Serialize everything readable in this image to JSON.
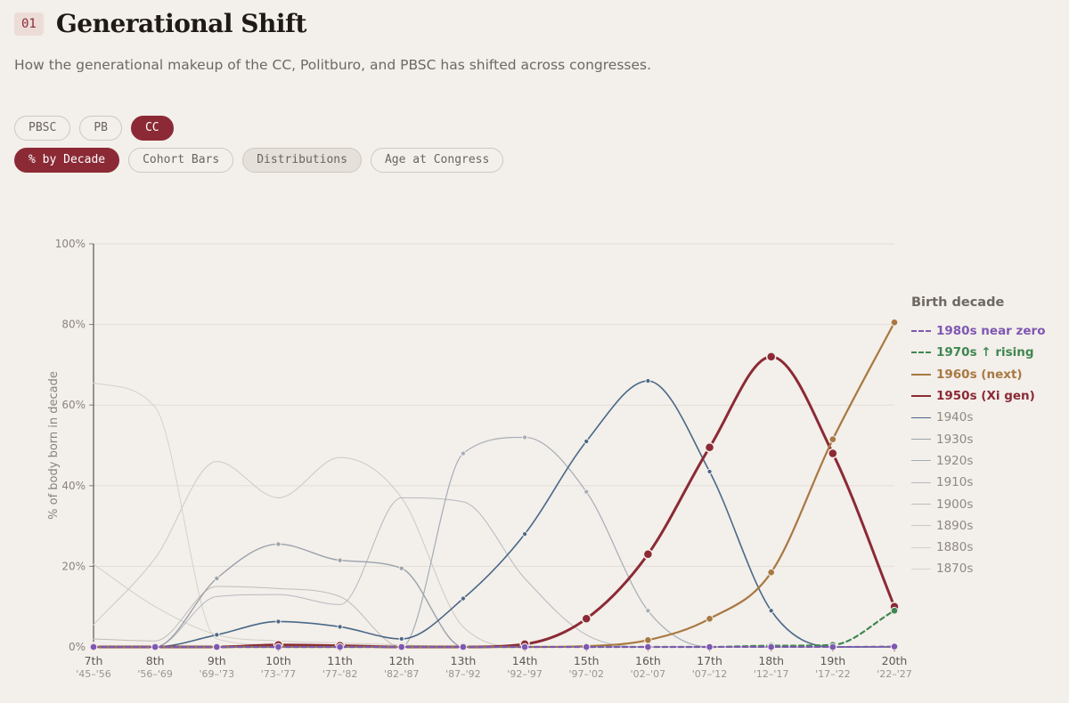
{
  "header": {
    "number": "01",
    "title": "Generational Shift",
    "subtitle": "How the generational makeup of the CC, Politburo, and PBSC has shifted across congresses."
  },
  "body_filters": [
    {
      "label": "PBSC",
      "active": false
    },
    {
      "label": "PB",
      "active": false
    },
    {
      "label": "CC",
      "active": true
    }
  ],
  "view_tabs": [
    {
      "label": "% by Decade",
      "active": true,
      "soft": false
    },
    {
      "label": "Cohort Bars",
      "active": false,
      "soft": false
    },
    {
      "label": "Distributions",
      "active": false,
      "soft": true
    },
    {
      "label": "Age at Congress",
      "active": false,
      "soft": false
    }
  ],
  "chart_data": {
    "type": "line",
    "ylabel": "% of body born in decade",
    "ylim": [
      0,
      100
    ],
    "yticks": [
      0,
      20,
      40,
      60,
      80,
      100
    ],
    "ytick_labels": [
      "0%",
      "20%",
      "40%",
      "60%",
      "80%",
      "100%"
    ],
    "categories": [
      "7th",
      "8th",
      "9th",
      "10th",
      "11th",
      "12th",
      "13th",
      "14th",
      "15th",
      "16th",
      "17th",
      "18th",
      "19th",
      "20th"
    ],
    "category_years": [
      "'45–'56",
      "'56–'69",
      "'69–'73",
      "'73–'77",
      "'77–'82",
      "'82–'87",
      "'87–'92",
      "'92–'97",
      "'97–'02",
      "'02–'07",
      "'07–'12",
      "'12–'17",
      "'17–'22",
      "'22–'27"
    ],
    "legend_title": "Birth decade",
    "series": [
      {
        "name": "1870s",
        "label": "1870s",
        "color": "#d6d1cb",
        "width": 1,
        "highlight": false,
        "markers": false,
        "values": [
          65.5,
          59.5,
          2,
          0.5,
          0,
          0,
          0,
          0,
          0,
          0,
          0,
          0,
          0,
          0
        ]
      },
      {
        "name": "1880s",
        "label": "1880s",
        "color": "#d3cec8",
        "width": 1,
        "highlight": false,
        "markers": false,
        "values": [
          20.5,
          10,
          3,
          1.5,
          1,
          0.5,
          0,
          0,
          0,
          0,
          0,
          0,
          0,
          0
        ]
      },
      {
        "name": "1890s",
        "label": "1890s",
        "color": "#cec8c2",
        "width": 1,
        "highlight": false,
        "markers": false,
        "values": [
          5.5,
          22,
          46,
          37,
          47,
          37,
          5,
          0,
          0,
          0,
          0,
          0,
          0,
          0
        ]
      },
      {
        "name": "1900s",
        "label": "1900s",
        "color": "#c2bcb6",
        "width": 1,
        "highlight": false,
        "markers": false,
        "values": [
          2,
          1.5,
          15,
          14.5,
          12.5,
          0,
          0,
          0,
          0,
          0,
          0,
          0,
          0,
          0
        ]
      },
      {
        "name": "1910s",
        "label": "1910s",
        "color": "#b5b9c0",
        "width": 1,
        "highlight": false,
        "markers": false,
        "values": [
          0,
          0,
          12.5,
          13,
          10.5,
          37,
          36,
          17,
          3,
          0,
          0,
          0,
          0,
          0
        ]
      },
      {
        "name": "1920s",
        "label": "1920s",
        "color": "#a5adb7",
        "width": 1.2,
        "highlight": false,
        "markers": true,
        "values": [
          0,
          0,
          0,
          0,
          0,
          0,
          48,
          52,
          38.5,
          9,
          0,
          0,
          0,
          0
        ]
      },
      {
        "name": "1930s",
        "label": "1930s",
        "color": "#9ba2ab",
        "width": 1.4,
        "highlight": false,
        "markers": true,
        "values": [
          0,
          0,
          17,
          25.5,
          21.5,
          19.5,
          0,
          0,
          0,
          0,
          0,
          0,
          0,
          0
        ]
      },
      {
        "name": "1940s",
        "label": "1940s",
        "color": "#4a6888",
        "width": 1.6,
        "highlight": false,
        "markers": true,
        "values": [
          0,
          0,
          3,
          6.3,
          5,
          2,
          12,
          28,
          51,
          66,
          43.5,
          9,
          0,
          0
        ]
      },
      {
        "name": "1950s",
        "label": "1950s (Xi gen)",
        "color": "#8b2a35",
        "width": 3,
        "highlight": true,
        "markers": true,
        "values": [
          0,
          0,
          0,
          0.5,
          0.3,
          0,
          0,
          0.7,
          7,
          23,
          49.5,
          72,
          48,
          10
        ]
      },
      {
        "name": "1960s",
        "label": "1960s (next)",
        "color": "#a87842",
        "width": 2.2,
        "highlight": true,
        "markers": true,
        "values": [
          0,
          0,
          0,
          0,
          0,
          0,
          0,
          0,
          0.2,
          1.7,
          7,
          18.5,
          51.5,
          80.5
        ]
      },
      {
        "name": "1970s",
        "label": "1970s ↑ rising",
        "color": "#3f8752",
        "width": 2.2,
        "highlight": true,
        "markers": true,
        "dashed": true,
        "values": [
          0,
          0,
          0,
          0,
          0,
          0,
          0,
          0,
          0,
          0,
          0,
          0.3,
          0.5,
          9
        ]
      },
      {
        "name": "1980s",
        "label": "1980s near zero",
        "color": "#7e57b3",
        "width": 2,
        "highlight": true,
        "markers": true,
        "dashed": true,
        "values": [
          0,
          0,
          0,
          0,
          0,
          0,
          0,
          0,
          0,
          0,
          0,
          0,
          0,
          0.1
        ]
      }
    ],
    "legend_order": [
      "1980s",
      "1970s",
      "1960s",
      "1950s",
      "1940s",
      "1930s",
      "1920s",
      "1910s",
      "1900s",
      "1890s",
      "1880s",
      "1870s"
    ]
  }
}
